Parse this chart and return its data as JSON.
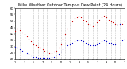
{
  "title": "Milw. Weather Outdoor Temp vs Dew Point (24 Hours)",
  "title_fontsize": 3.5,
  "background_color": "#ffffff",
  "plot_bg": "#ffffff",
  "grid_color": "#888888",
  "temp_color": "#cc0000",
  "dew_color": "#0000cc",
  "ylim": [
    20,
    60
  ],
  "xlim": [
    0,
    288
  ],
  "temp_data": [
    [
      0,
      42
    ],
    [
      6,
      44
    ],
    [
      12,
      43
    ],
    [
      18,
      41
    ],
    [
      24,
      40
    ],
    [
      30,
      38
    ],
    [
      36,
      36
    ],
    [
      42,
      34
    ],
    [
      48,
      32
    ],
    [
      54,
      31
    ],
    [
      60,
      30
    ],
    [
      66,
      29
    ],
    [
      72,
      28
    ],
    [
      78,
      27
    ],
    [
      84,
      26
    ],
    [
      90,
      25
    ],
    [
      96,
      25
    ],
    [
      102,
      26
    ],
    [
      108,
      27
    ],
    [
      114,
      29
    ],
    [
      120,
      32
    ],
    [
      126,
      36
    ],
    [
      132,
      40
    ],
    [
      138,
      44
    ],
    [
      144,
      47
    ],
    [
      150,
      50
    ],
    [
      156,
      52
    ],
    [
      162,
      53
    ],
    [
      168,
      54
    ],
    [
      174,
      53
    ],
    [
      180,
      51
    ],
    [
      186,
      50
    ],
    [
      192,
      48
    ],
    [
      198,
      47
    ],
    [
      204,
      46
    ],
    [
      210,
      47
    ],
    [
      216,
      49
    ],
    [
      222,
      51
    ],
    [
      228,
      53
    ],
    [
      234,
      54
    ],
    [
      240,
      53
    ],
    [
      246,
      51
    ],
    [
      252,
      50
    ],
    [
      258,
      49
    ],
    [
      264,
      48
    ],
    [
      270,
      47
    ],
    [
      276,
      47
    ],
    [
      282,
      48
    ],
    [
      288,
      50
    ]
  ],
  "dew_data": [
    [
      0,
      30
    ],
    [
      6,
      29
    ],
    [
      12,
      28
    ],
    [
      18,
      27
    ],
    [
      24,
      26
    ],
    [
      30,
      25
    ],
    [
      36,
      24
    ],
    [
      42,
      23
    ],
    [
      48,
      22
    ],
    [
      54,
      22
    ],
    [
      60,
      21
    ],
    [
      66,
      21
    ],
    [
      72,
      21
    ],
    [
      78,
      21
    ],
    [
      84,
      21
    ],
    [
      90,
      21
    ],
    [
      96,
      22
    ],
    [
      102,
      22
    ],
    [
      108,
      23
    ],
    [
      114,
      24
    ],
    [
      120,
      26
    ],
    [
      126,
      28
    ],
    [
      132,
      29
    ],
    [
      138,
      31
    ],
    [
      144,
      32
    ],
    [
      150,
      33
    ],
    [
      156,
      34
    ],
    [
      162,
      35
    ],
    [
      168,
      35
    ],
    [
      174,
      35
    ],
    [
      180,
      34
    ],
    [
      186,
      33
    ],
    [
      192,
      32
    ],
    [
      198,
      31
    ],
    [
      204,
      31
    ],
    [
      210,
      31
    ],
    [
      216,
      32
    ],
    [
      222,
      33
    ],
    [
      228,
      34
    ],
    [
      234,
      35
    ],
    [
      240,
      34
    ],
    [
      246,
      33
    ],
    [
      252,
      33
    ],
    [
      258,
      32
    ],
    [
      264,
      32
    ],
    [
      270,
      47
    ],
    [
      276,
      48
    ],
    [
      282,
      35
    ],
    [
      288,
      36
    ]
  ],
  "x_ticks": [
    0,
    12,
    24,
    36,
    48,
    60,
    72,
    84,
    96,
    108,
    120,
    132,
    144,
    156,
    168,
    180,
    192,
    204,
    216,
    228,
    240,
    252,
    264,
    276,
    288
  ],
  "x_tick_labels": [
    "1",
    "",
    "3",
    "",
    "5",
    "",
    "7",
    "",
    "9",
    "",
    "11",
    "",
    "1",
    "",
    "3",
    "",
    "5",
    "",
    "7",
    "",
    "9",
    "",
    "11",
    "",
    "1"
  ],
  "y_ticks": [
    20,
    25,
    30,
    35,
    40,
    45,
    50,
    55,
    60
  ],
  "y_tick_labels": [
    "20",
    "25",
    "30",
    "35",
    "40",
    "45",
    "50",
    "55",
    "60"
  ]
}
